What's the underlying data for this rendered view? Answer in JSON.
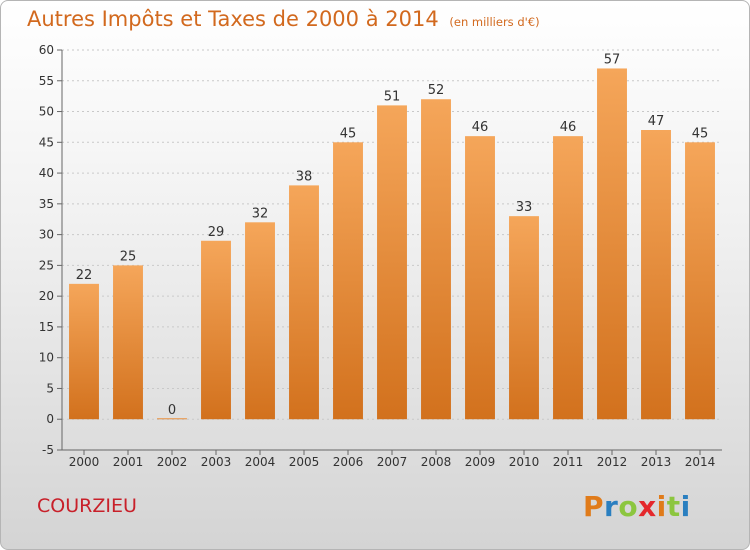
{
  "title": "Autres Impôts et Taxes de 2000 à 2014",
  "subtitle": "(en milliers d'€)",
  "place": "COURZIEU",
  "brand": {
    "letters": [
      "P",
      "r",
      "o",
      "x",
      "i",
      "t",
      "i"
    ],
    "colors": [
      "#e07b1a",
      "#2a7fc0",
      "#8cc63f",
      "#e4282c",
      "#e07b1a",
      "#8cc63f",
      "#2a7fc0"
    ]
  },
  "chart_data": {
    "type": "bar",
    "categories": [
      "2000",
      "2001",
      "2002",
      "2003",
      "2004",
      "2005",
      "2006",
      "2007",
      "2008",
      "2009",
      "2010",
      "2011",
      "2012",
      "2013",
      "2014"
    ],
    "values": [
      22,
      25,
      0,
      29,
      32,
      38,
      45,
      51,
      52,
      46,
      33,
      46,
      57,
      47,
      45
    ],
    "ylim": [
      -5,
      60
    ],
    "yticks": [
      -5,
      0,
      5,
      10,
      15,
      20,
      25,
      30,
      35,
      40,
      45,
      50,
      55,
      60
    ],
    "grid": true,
    "bar_color_light": "#f5a65a",
    "bar_color_dark": "#d2711d"
  }
}
